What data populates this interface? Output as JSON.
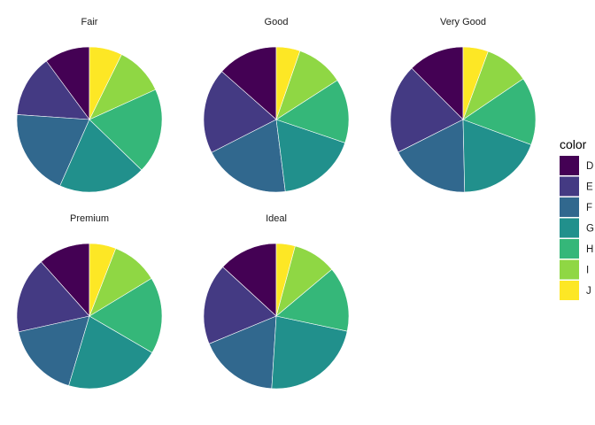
{
  "chart_data": {
    "type": "pie",
    "facet_by": "cut",
    "legend_title": "color",
    "legend_position": "right",
    "categories": [
      "D",
      "E",
      "F",
      "G",
      "H",
      "I",
      "J"
    ],
    "colors": [
      "#440154",
      "#443A83",
      "#31688E",
      "#21908C",
      "#35B779",
      "#8FD744",
      "#FDE725"
    ],
    "facets": [
      {
        "name": "Fair",
        "values": [
          10.1,
          13.8,
          19.4,
          19.4,
          19.0,
          10.9,
          7.3
        ]
      },
      {
        "name": "Good",
        "values": [
          13.5,
          19.0,
          19.5,
          17.8,
          14.3,
          10.6,
          5.3
        ]
      },
      {
        "name": "Very Good",
        "values": [
          12.5,
          19.9,
          17.9,
          19.0,
          15.1,
          9.9,
          5.6
        ]
      },
      {
        "name": "Premium",
        "values": [
          11.6,
          16.9,
          16.9,
          21.2,
          17.1,
          10.4,
          5.9
        ]
      },
      {
        "name": "Ideal",
        "values": [
          13.2,
          18.1,
          17.8,
          22.7,
          14.5,
          9.7,
          4.2
        ]
      }
    ]
  }
}
